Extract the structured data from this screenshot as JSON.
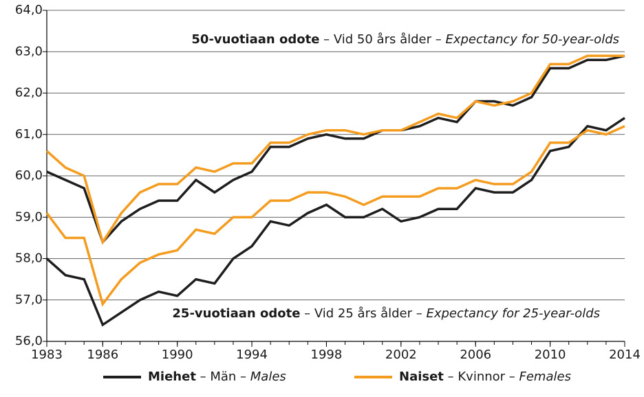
{
  "chart_data": {
    "type": "line",
    "x": [
      1983,
      1984,
      1985,
      1986,
      1987,
      1988,
      1989,
      1990,
      1991,
      1992,
      1993,
      1994,
      1995,
      1996,
      1997,
      1998,
      1999,
      2000,
      2001,
      2002,
      2003,
      2004,
      2005,
      2006,
      2007,
      2008,
      2009,
      2010,
      2011,
      2012,
      2013,
      2014
    ],
    "xlim": [
      1983,
      2014
    ],
    "xticks": [
      1983,
      1986,
      1990,
      1994,
      1998,
      2002,
      2006,
      2010,
      2014
    ],
    "ylim": [
      56,
      64
    ],
    "yticks": [
      {
        "value": 56,
        "label": "56,0"
      },
      {
        "value": 57,
        "label": "57,0"
      },
      {
        "value": 58,
        "label": "58,0"
      },
      {
        "value": 59,
        "label": "59,0"
      },
      {
        "value": 60,
        "label": "60,0"
      },
      {
        "value": 61,
        "label": "61,0"
      },
      {
        "value": 62,
        "label": "62,0"
      },
      {
        "value": 63,
        "label": "63,0"
      },
      {
        "value": 64,
        "label": "64,0"
      }
    ],
    "grid": true,
    "legend": "bottom",
    "annotations": [
      {
        "text": [
          "50-vuotiaan odote",
          " – Vid 50 års ålder – ",
          "Expectancy for 50-year-olds"
        ]
      },
      {
        "text": [
          "25-vuotiaan odote",
          " – Vid 25 års ålder – ",
          "Expectancy for 25-year-olds"
        ]
      }
    ],
    "series": [
      {
        "name": [
          "Miehet",
          " – Män – ",
          "Males"
        ],
        "color": "#1e1e1e",
        "values_50": [
          60.1,
          59.9,
          59.7,
          58.4,
          58.9,
          59.2,
          59.4,
          59.4,
          59.9,
          59.6,
          59.9,
          60.1,
          60.7,
          60.7,
          60.9,
          61.0,
          60.9,
          60.9,
          61.1,
          61.1,
          61.2,
          61.4,
          61.3,
          61.8,
          61.8,
          61.7,
          61.9,
          62.6,
          62.6,
          62.8,
          62.8,
          62.9
        ],
        "values_25": [
          58.0,
          57.6,
          57.5,
          56.4,
          56.7,
          57.0,
          57.2,
          57.1,
          57.5,
          57.4,
          58.0,
          58.3,
          58.9,
          58.8,
          59.1,
          59.3,
          59.0,
          59.0,
          59.2,
          58.9,
          59.0,
          59.2,
          59.2,
          59.7,
          59.6,
          59.6,
          59.9,
          60.6,
          60.7,
          61.2,
          61.1,
          61.4
        ]
      },
      {
        "name": [
          "Naiset",
          " – Kvinnor – ",
          "Females"
        ],
        "color": "#f39c1f",
        "values_50": [
          60.6,
          60.2,
          60.0,
          58.4,
          59.1,
          59.6,
          59.8,
          59.8,
          60.2,
          60.1,
          60.3,
          60.3,
          60.8,
          60.8,
          61.0,
          61.1,
          61.1,
          61.0,
          61.1,
          61.1,
          61.3,
          61.5,
          61.4,
          61.8,
          61.7,
          61.8,
          62.0,
          62.7,
          62.7,
          62.9,
          62.9,
          62.9
        ],
        "values_25": [
          59.1,
          58.5,
          58.5,
          56.9,
          57.5,
          57.9,
          58.1,
          58.2,
          58.7,
          58.6,
          59.0,
          59.0,
          59.4,
          59.4,
          59.6,
          59.6,
          59.5,
          59.3,
          59.5,
          59.5,
          59.5,
          59.7,
          59.7,
          59.9,
          59.8,
          59.8,
          60.1,
          60.8,
          60.8,
          61.1,
          61.0,
          61.2
        ]
      }
    ]
  }
}
